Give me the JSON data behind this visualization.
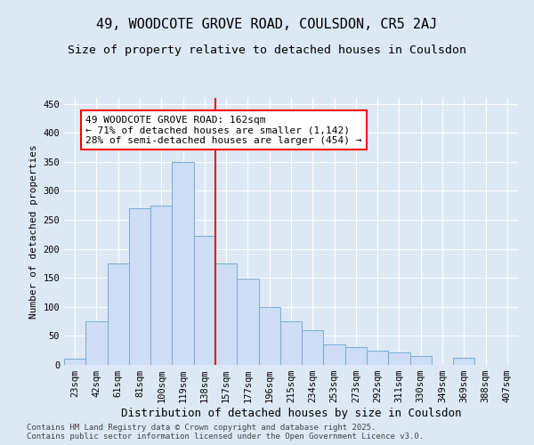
{
  "title": "49, WOODCOTE GROVE ROAD, COULSDON, CR5 2AJ",
  "subtitle": "Size of property relative to detached houses in Coulsdon",
  "xlabel": "Distribution of detached houses by size in Coulsdon",
  "ylabel": "Number of detached properties",
  "categories": [
    "23sqm",
    "42sqm",
    "61sqm",
    "81sqm",
    "100sqm",
    "119sqm",
    "138sqm",
    "157sqm",
    "177sqm",
    "196sqm",
    "215sqm",
    "234sqm",
    "253sqm",
    "273sqm",
    "292sqm",
    "311sqm",
    "330sqm",
    "349sqm",
    "369sqm",
    "388sqm",
    "407sqm"
  ],
  "bar_heights": [
    10,
    75,
    175,
    270,
    275,
    350,
    222,
    175,
    148,
    100,
    75,
    60,
    35,
    30,
    25,
    22,
    15,
    0,
    13,
    0,
    0
  ],
  "bar_color": "#ccddf5",
  "bar_edge_color": "#7aaad0",
  "vline_color": "red",
  "annotation_text": "49 WOODCOTE GROVE ROAD: 162sqm\n← 71% of detached houses are smaller (1,142)\n28% of semi-detached houses are larger (454) →",
  "annotation_box_color": "white",
  "annotation_box_edge_color": "red",
  "ylim": [
    0,
    460
  ],
  "yticks": [
    0,
    50,
    100,
    150,
    200,
    250,
    300,
    350,
    400,
    450
  ],
  "background_color": "#dde8f5",
  "grid_color": "#ffffff",
  "footer_text": "Contains HM Land Registry data © Crown copyright and database right 2025.\nContains public sector information licensed under the Open Government Licence v3.0.",
  "title_fontsize": 11,
  "subtitle_fontsize": 9.5,
  "xlabel_fontsize": 9,
  "ylabel_fontsize": 8,
  "tick_fontsize": 7.5,
  "annotation_fontsize": 8,
  "footer_fontsize": 6.5
}
